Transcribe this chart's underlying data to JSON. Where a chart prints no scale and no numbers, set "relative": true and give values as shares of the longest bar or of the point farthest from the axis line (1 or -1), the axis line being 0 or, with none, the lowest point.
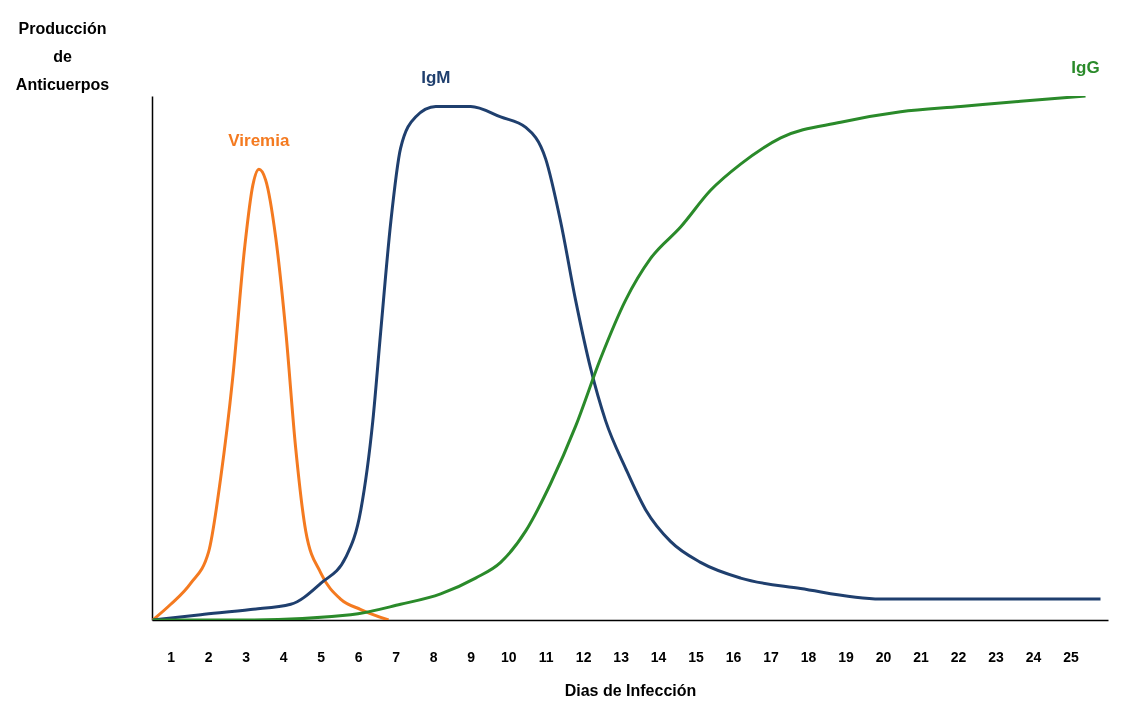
{
  "chart_data": {
    "type": "line",
    "xlabel": "Dias de Infección",
    "ylabel": "Producción de Anticuerpos",
    "relative": true,
    "xlim": [
      0.5,
      26
    ],
    "xticks": [
      1,
      2,
      3,
      4,
      5,
      6,
      7,
      8,
      9,
      10,
      11,
      12,
      13,
      14,
      15,
      16,
      17,
      18,
      19,
      20,
      21,
      22,
      23,
      24,
      25
    ],
    "series": [
      {
        "name": "Viremia",
        "color": "#f47a20",
        "x": [
          0.52,
          1,
          1.53,
          2.01,
          2.33,
          2.65,
          2.97,
          3.19,
          3.35,
          3.53,
          3.8,
          4.07,
          4.33,
          4.6,
          5,
          5.53,
          6.07,
          6.81
        ],
        "values": [
          0,
          0.03,
          0.07,
          0.13,
          0.27,
          0.46,
          0.71,
          0.83,
          0.86,
          0.84,
          0.73,
          0.55,
          0.33,
          0.17,
          0.09,
          0.04,
          0.02,
          0
        ]
      },
      {
        "name": "IgM",
        "color": "#1f3f6e",
        "x": [
          0.52,
          1.8,
          3.13,
          4.2,
          5,
          5.67,
          6.07,
          6.39,
          6.6,
          6.87,
          7.13,
          7.53,
          8.07,
          9,
          9.8,
          10.47,
          11,
          11.4,
          11.8,
          12.2,
          12.6,
          13.13,
          13.67,
          14.33,
          15.13,
          16.2,
          17.8,
          19.93,
          21.8,
          24.47,
          25.8
        ],
        "values": [
          0,
          0.01,
          0.02,
          0.03,
          0.07,
          0.12,
          0.21,
          0.38,
          0.55,
          0.76,
          0.9,
          0.96,
          0.98,
          0.98,
          0.96,
          0.94,
          0.88,
          0.76,
          0.61,
          0.48,
          0.38,
          0.29,
          0.21,
          0.15,
          0.11,
          0.08,
          0.06,
          0.04,
          0.04,
          0.04,
          0.04
        ]
      },
      {
        "name": "IgG",
        "color": "#2a8a2a",
        "x": [
          0.52,
          3.13,
          5.8,
          7.13,
          8.2,
          9.13,
          9.8,
          10.47,
          11.13,
          11.8,
          12.47,
          13.13,
          13.8,
          14.6,
          15.4,
          16.2,
          17.27,
          18.87,
          20.47,
          22.07,
          23.67,
          25.4
        ],
        "values": [
          0,
          0,
          0.01,
          0.03,
          0.05,
          0.08,
          0.11,
          0.17,
          0.26,
          0.37,
          0.5,
          0.61,
          0.69,
          0.75,
          0.82,
          0.87,
          0.92,
          0.95,
          0.97,
          0.98,
          0.99,
          1
        ]
      }
    ]
  }
}
